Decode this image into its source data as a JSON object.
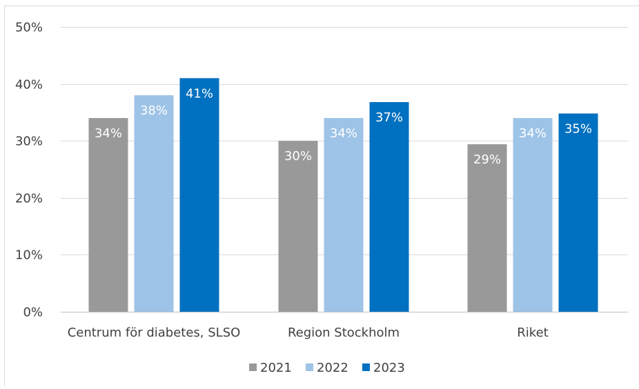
{
  "chart_data": {
    "type": "bar",
    "title": "",
    "xlabel": "",
    "ylabel": "",
    "categories": [
      "Centrum för diabetes, SLSO",
      "Region Stockholm",
      "Riket"
    ],
    "series": [
      {
        "name": "2021",
        "color": "#999999",
        "values": [
          34,
          30,
          29.4
        ],
        "labels": [
          "34%",
          "30%",
          "29%"
        ]
      },
      {
        "name": "2022",
        "color": "#9dc3e6",
        "values": [
          38,
          34,
          34
        ],
        "labels": [
          "38%",
          "34%",
          "34%"
        ]
      },
      {
        "name": "2023",
        "color": "#0070c0",
        "values": [
          41,
          36.8,
          34.8
        ],
        "labels": [
          "41%",
          "37%",
          "35%"
        ]
      }
    ],
    "ylim": [
      0,
      50
    ],
    "yticks": [
      0,
      10,
      20,
      30,
      40,
      50
    ],
    "ytick_labels": [
      "0%",
      "10%",
      "20%",
      "30%",
      "40%",
      "50%"
    ],
    "grid": true,
    "legend_position": "bottom"
  }
}
